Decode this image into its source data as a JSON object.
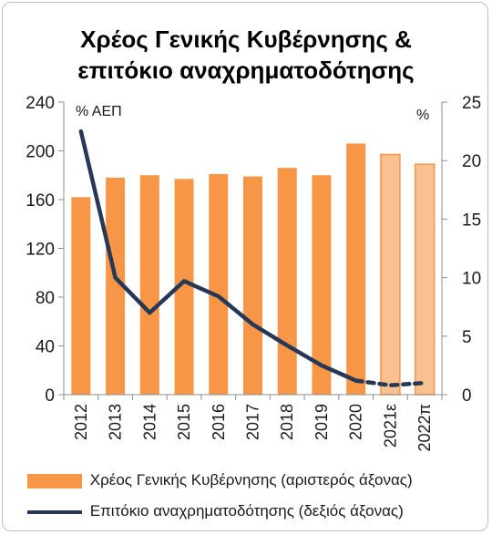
{
  "chart_data": {
    "type": "bar+line",
    "title": "Χρέος Γενικής Κυβέρνησης & επιτόκιο αναχρηματοδότησης",
    "title_lines": [
      "Χρέος Γενικής Κυβέρνησης &",
      "επιτόκιο αναχρηματοδότησης"
    ],
    "categories": [
      "2012",
      "2013",
      "2014",
      "2015",
      "2016",
      "2017",
      "2018",
      "2019",
      "2020",
      "2021ε",
      "2022π"
    ],
    "left_axis": {
      "label": "% ΑΕΠ",
      "ylim": [
        0,
        240
      ],
      "ticks": [
        0,
        40,
        80,
        120,
        160,
        200,
        240
      ]
    },
    "right_axis": {
      "label": "%",
      "ylim": [
        0,
        25
      ],
      "ticks": [
        0,
        5,
        10,
        15,
        20,
        25
      ]
    },
    "series": [
      {
        "name": "Χρέος Γενικής Κυβέρνησης (αριστερός άξονας)",
        "kind": "bar",
        "axis": "left",
        "color": "#f79646",
        "forecast_color": "#fac090",
        "forecast_from_index": 9,
        "values": [
          162,
          178,
          180,
          177,
          181,
          179,
          186,
          180,
          206,
          197,
          189
        ]
      },
      {
        "name": "Επιτόκιο αναχρηματοδότησης (δεξιός άξονας)",
        "kind": "line",
        "axis": "right",
        "color": "#253858",
        "dashed_from_index": 8,
        "values": [
          22.5,
          10.0,
          7.0,
          9.7,
          8.4,
          6.0,
          4.2,
          2.5,
          1.2,
          0.8,
          1.0
        ]
      }
    ],
    "grid": false,
    "legend": "bottom"
  }
}
